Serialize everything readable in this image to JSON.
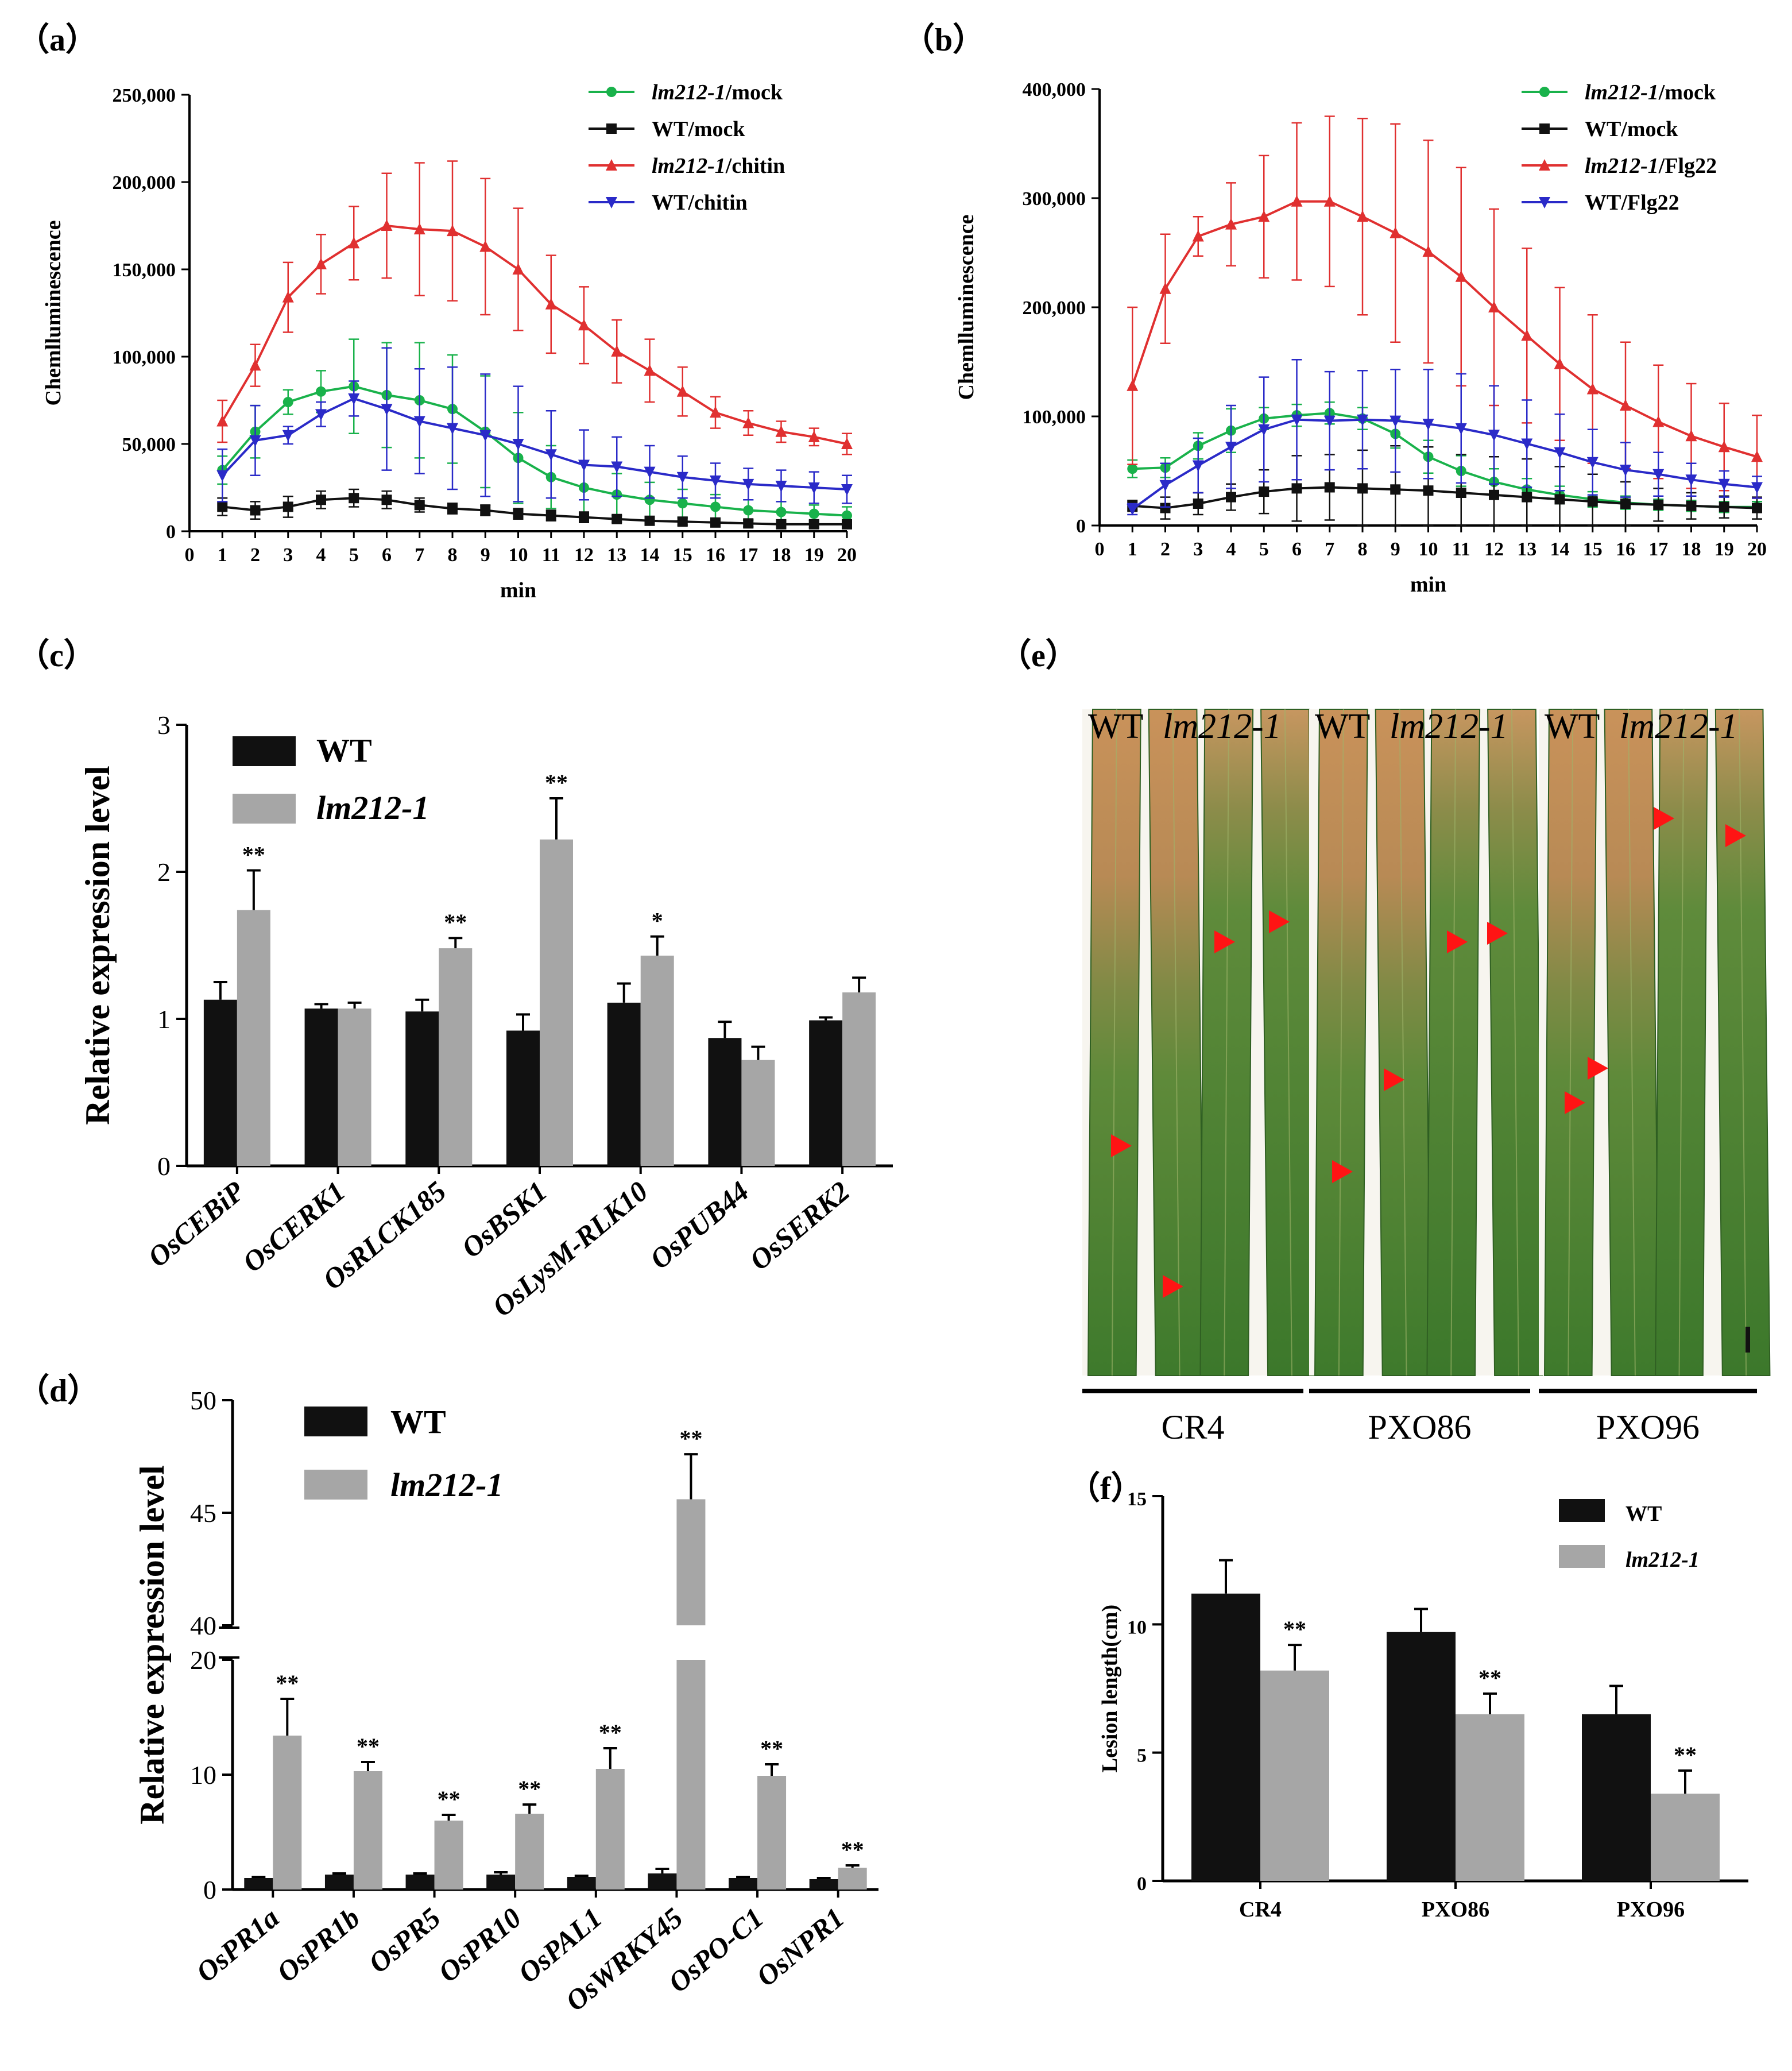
{
  "panels": {
    "a": {
      "label": "（a）"
    },
    "b": {
      "label": "（b）"
    },
    "c": {
      "label": "（c）"
    },
    "d": {
      "label": "（d）"
    },
    "e": {
      "label": "（e）"
    },
    "f": {
      "label": "（f）"
    }
  },
  "colors": {
    "green": "#19b24b",
    "black": "#111111",
    "red": "#e03030",
    "blue": "#2a2ac8",
    "grey": "#a6a6a6"
  },
  "chart_data": [
    {
      "id": "a",
      "type": "line",
      "title": "",
      "xlabel": "min",
      "ylabel": "Chemlluminescence",
      "xlim": [
        0,
        20
      ],
      "ylim": [
        0,
        250000
      ],
      "x_ticks": [
        "0",
        "1",
        "2",
        "3",
        "4",
        "5",
        "6",
        "7",
        "8",
        "9",
        "10",
        "11",
        "12",
        "13",
        "14",
        "15",
        "16",
        "17",
        "18",
        "19",
        "20"
      ],
      "y_ticks": [
        "0",
        "50,000",
        "100,000",
        "150,000",
        "200,000",
        "250,000"
      ],
      "x": [
        1,
        2,
        3,
        4,
        5,
        6,
        7,
        8,
        9,
        10,
        11,
        12,
        13,
        14,
        15,
        16,
        17,
        18,
        19,
        20
      ],
      "series": [
        {
          "name_italic": "lm212-1",
          "name_rest": "/mock",
          "color": "green",
          "marker": "circle",
          "values": [
            35000,
            57000,
            74000,
            80000,
            83000,
            78000,
            75000,
            70000,
            57000,
            42000,
            31000,
            25000,
            21000,
            18000,
            16000,
            14000,
            12000,
            11000,
            10000,
            9000
          ],
          "errors": [
            8000,
            15000,
            7000,
            12000,
            27000,
            30000,
            33000,
            31000,
            32000,
            26000,
            18000,
            15000,
            12000,
            10000,
            8000,
            7000,
            6000,
            6000,
            5000,
            5000
          ]
        },
        {
          "name_italic": "",
          "name_rest": "WT/mock",
          "color": "black",
          "marker": "square",
          "values": [
            14000,
            12000,
            14000,
            18000,
            19000,
            18000,
            15000,
            13000,
            12000,
            10000,
            9000,
            8000,
            7000,
            6000,
            5500,
            5000,
            4500,
            4000,
            4000,
            4000
          ],
          "errors": [
            5000,
            5000,
            6000,
            5000,
            5000,
            5000,
            4000,
            3000,
            3000,
            3000,
            3000,
            3000,
            2000,
            2000,
            2000,
            2000,
            2000,
            2000,
            2000,
            2000
          ]
        },
        {
          "name_italic": "lm212-1",
          "name_rest": "/chitin",
          "color": "red",
          "marker": "triangle",
          "values": [
            63000,
            95000,
            134000,
            153000,
            165000,
            175000,
            173000,
            172000,
            163000,
            150000,
            130000,
            118000,
            103000,
            92000,
            80000,
            68000,
            62000,
            57000,
            54000,
            50000
          ],
          "errors": [
            12000,
            12000,
            20000,
            17000,
            21000,
            30000,
            38000,
            40000,
            39000,
            35000,
            28000,
            22000,
            18000,
            18000,
            14000,
            9000,
            7000,
            6000,
            5000,
            6000
          ]
        },
        {
          "name_italic": "",
          "name_rest": "WT/chitin",
          "color": "blue",
          "marker": "triangle-down",
          "values": [
            32000,
            52000,
            55000,
            67000,
            76000,
            70000,
            63000,
            59000,
            55000,
            50000,
            44000,
            38000,
            37000,
            34000,
            31000,
            29000,
            27000,
            26000,
            25000,
            24000
          ],
          "errors": [
            15000,
            20000,
            5000,
            7000,
            10000,
            35000,
            30000,
            35000,
            35000,
            33000,
            25000,
            20000,
            17000,
            15000,
            12000,
            10000,
            9000,
            9000,
            9000,
            8000
          ]
        }
      ]
    },
    {
      "id": "b",
      "type": "line",
      "title": "",
      "xlabel": "min",
      "ylabel": "Chemlluminescence",
      "xlim": [
        0,
        20
      ],
      "ylim": [
        0,
        400000
      ],
      "x_ticks": [
        "0",
        "1",
        "2",
        "3",
        "4",
        "5",
        "6",
        "7",
        "8",
        "9",
        "10",
        "11",
        "12",
        "13",
        "14",
        "15",
        "16",
        "17",
        "18",
        "19",
        "20"
      ],
      "y_ticks": [
        "0",
        "100,000",
        "200,000",
        "300,000",
        "400,000"
      ],
      "x": [
        1,
        2,
        3,
        4,
        5,
        6,
        7,
        8,
        9,
        10,
        11,
        12,
        13,
        14,
        15,
        16,
        17,
        18,
        19,
        20
      ],
      "series": [
        {
          "name_italic": "lm212-1",
          "name_rest": "/mock",
          "color": "green",
          "marker": "circle",
          "values": [
            52000,
            53000,
            73000,
            87000,
            98000,
            101000,
            103000,
            98000,
            84000,
            63000,
            50000,
            40000,
            33000,
            28000,
            24000,
            21000,
            19000,
            18000,
            17000,
            17000
          ],
          "errors": [
            8000,
            9000,
            12000,
            20000,
            10000,
            10000,
            10000,
            10000,
            13000,
            15000,
            14000,
            12000,
            10000,
            8000,
            7000,
            6000,
            5000,
            5000,
            5000,
            5000
          ]
        },
        {
          "name_italic": "",
          "name_rest": "WT/mock",
          "color": "black",
          "marker": "square",
          "values": [
            18000,
            16000,
            20000,
            26000,
            31000,
            34000,
            35000,
            34000,
            33000,
            32000,
            30000,
            28000,
            26000,
            24000,
            22000,
            20000,
            19000,
            18000,
            17000,
            16000
          ],
          "errors": [
            5000,
            10000,
            10000,
            12000,
            20000,
            30000,
            30000,
            35000,
            40000,
            40000,
            35000,
            35000,
            35000,
            30000,
            25000,
            20000,
            15000,
            12000,
            10000,
            10000
          ]
        },
        {
          "name_italic": "lm212-1",
          "name_rest": "/Flg22",
          "color": "red",
          "marker": "triangle",
          "values": [
            128000,
            217000,
            265000,
            276000,
            283000,
            297000,
            297000,
            283000,
            268000,
            251000,
            228000,
            200000,
            174000,
            148000,
            125000,
            110000,
            95000,
            82000,
            72000,
            63000
          ],
          "errors": [
            72000,
            50000,
            18000,
            38000,
            56000,
            72000,
            78000,
            90000,
            100000,
            102000,
            100000,
            90000,
            80000,
            70000,
            68000,
            58000,
            52000,
            48000,
            40000,
            38000
          ]
        },
        {
          "name_italic": "",
          "name_rest": "WT/Flg22",
          "color": "blue",
          "marker": "triangle-down",
          "values": [
            15000,
            37000,
            55000,
            72000,
            88000,
            97000,
            96000,
            97000,
            96000,
            93000,
            89000,
            83000,
            75000,
            67000,
            58000,
            51000,
            47000,
            42000,
            38000,
            35000
          ],
          "errors": [
            5000,
            20000,
            25000,
            38000,
            48000,
            55000,
            45000,
            45000,
            47000,
            50000,
            50000,
            45000,
            40000,
            35000,
            30000,
            25000,
            20000,
            15000,
            12000,
            10000
          ]
        }
      ]
    },
    {
      "id": "c",
      "type": "bar",
      "ylabel": "Relative expression level",
      "ylim": [
        0,
        3
      ],
      "y_ticks": [
        "0",
        "1",
        "2",
        "3"
      ],
      "categories": [
        "OsCEBiP",
        "OsCERK1",
        "OsRLCK185",
        "OsBSK1",
        "OsLysM-RLK10",
        "OsPUB44",
        "OsSERK2"
      ],
      "series": [
        {
          "name": "WT",
          "color": "black",
          "values": [
            1.13,
            1.07,
            1.05,
            0.92,
            1.11,
            0.87,
            0.99
          ],
          "errors": [
            0.12,
            0.03,
            0.08,
            0.11,
            0.13,
            0.11,
            0.02
          ]
        },
        {
          "name": "lm212-1",
          "color": "grey",
          "values": [
            1.74,
            1.07,
            1.48,
            2.22,
            1.43,
            0.72,
            1.18
          ],
          "errors": [
            0.27,
            0.04,
            0.07,
            0.28,
            0.13,
            0.09,
            0.1
          ]
        }
      ],
      "significance": [
        "**",
        "",
        "**",
        "**",
        "*",
        "",
        ""
      ]
    },
    {
      "id": "d",
      "type": "bar",
      "ylabel": "Relative expression level",
      "broken_axis": {
        "lower": [
          0,
          20
        ],
        "upper": [
          40,
          50
        ]
      },
      "y_ticks_lower": [
        "0",
        "10",
        "20"
      ],
      "y_ticks_upper": [
        "40",
        "45",
        "50"
      ],
      "categories": [
        "OsPR1a",
        "OsPR1b",
        "OsPR5",
        "OsPR10",
        "OsPAL1",
        "OsWRKY45",
        "OsPO-C1",
        "OsNPR1"
      ],
      "series": [
        {
          "name": "WT",
          "color": "black",
          "values": [
            1.0,
            1.3,
            1.3,
            1.3,
            1.1,
            1.4,
            1.0,
            0.9
          ],
          "errors": [
            0.1,
            0.1,
            0.1,
            0.2,
            0.1,
            0.4,
            0.1,
            0.1
          ]
        },
        {
          "name": "lm212-1",
          "color": "grey",
          "values": [
            13.4,
            10.3,
            6.0,
            6.6,
            10.5,
            45.6,
            9.9,
            1.9
          ],
          "errors": [
            3.2,
            0.8,
            0.5,
            0.8,
            1.8,
            2.0,
            1.0,
            0.2
          ]
        }
      ],
      "significance": [
        "**",
        "**",
        "**",
        "**",
        "**",
        "**",
        "**",
        "**"
      ]
    },
    {
      "id": "f",
      "type": "bar",
      "ylabel": "Lesion length(cm)",
      "ylim": [
        0,
        15
      ],
      "y_ticks": [
        "0",
        "5",
        "10",
        "15"
      ],
      "categories": [
        "CR4",
        "PXO86",
        "PXO96"
      ],
      "series": [
        {
          "name": "WT",
          "color": "black",
          "values": [
            11.2,
            9.7,
            6.5
          ],
          "errors": [
            1.3,
            0.9,
            1.1
          ]
        },
        {
          "name": "lm212-1",
          "color": "grey",
          "values": [
            8.2,
            6.5,
            3.4
          ],
          "errors": [
            1.0,
            0.8,
            0.9
          ]
        }
      ],
      "significance": [
        "**",
        "**",
        "**"
      ]
    }
  ],
  "photo": {
    "groups": [
      {
        "wt": "WT",
        "mut": "lm212-1",
        "label": "CR4"
      },
      {
        "wt": "WT",
        "mut": "lm212-1",
        "label": "PXO86"
      },
      {
        "wt": "WT",
        "mut": "lm212-1",
        "label": "PXO96"
      }
    ]
  }
}
